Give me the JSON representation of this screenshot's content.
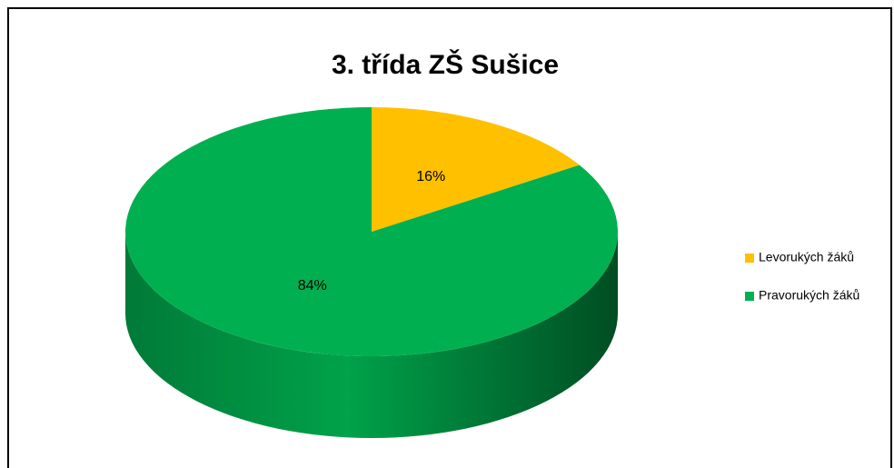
{
  "chart_data": {
    "type": "pie",
    "title": "3. třída ZŠ Sušice",
    "categories": [
      "Levorukých žáků",
      "Pravorukých žáků"
    ],
    "values": [
      16,
      84
    ],
    "value_labels": [
      "16%",
      "84%"
    ],
    "colors": [
      "#ffc000",
      "#00b050"
    ],
    "legend": "right"
  }
}
